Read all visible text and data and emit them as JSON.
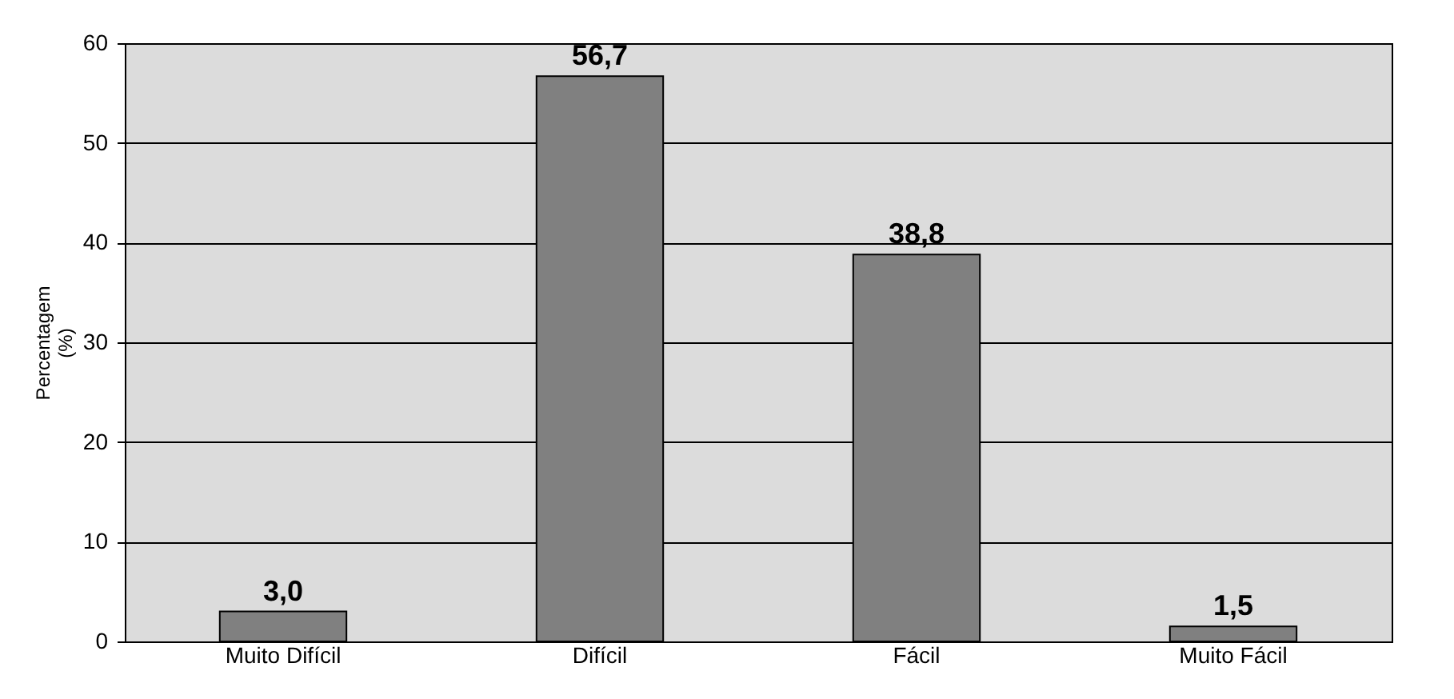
{
  "chart_data": {
    "type": "bar",
    "ylabel": "Percentagem\n(%)",
    "categories": [
      "Muito Difícil",
      "Difícil",
      "Fácil",
      "Muito Fácil"
    ],
    "values": [
      3.0,
      56.7,
      38.8,
      1.5
    ],
    "value_labels": [
      "3,0",
      "56,7",
      "38,8",
      "1,5"
    ],
    "color": "#808080",
    "ylim": [
      0,
      60
    ],
    "yticks": [
      0,
      10,
      20,
      30,
      40,
      50,
      60
    ],
    "grid": "y"
  }
}
